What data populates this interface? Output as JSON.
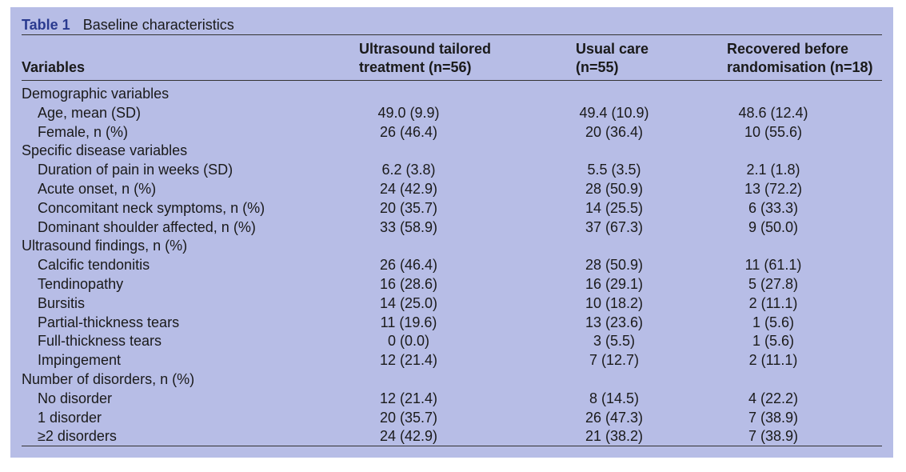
{
  "caption": {
    "label": "Table 1",
    "title": "Baseline characteristics"
  },
  "headers": {
    "variables": "Variables",
    "col1_line1": "Ultrasound tailored",
    "col1_line2": "treatment (n=56)",
    "col2_line1": "Usual care",
    "col2_line2": "(n=55)",
    "col3_line1": "Recovered before",
    "col3_line2": "randomisation (n=18)"
  },
  "rows": [
    {
      "type": "section",
      "label": "Demographic variables",
      "c1": "",
      "c2": "",
      "c3": ""
    },
    {
      "type": "item",
      "label": "Age, mean (SD)",
      "c1": "49.0 (9.9)",
      "c2": "49.4 (10.9)",
      "c3": "48.6 (12.4)"
    },
    {
      "type": "item",
      "label": "Female, n (%)",
      "c1": "26 (46.4)",
      "c2": "20 (36.4)",
      "c3": "10 (55.6)"
    },
    {
      "type": "section",
      "label": "Specific disease variables",
      "c1": "",
      "c2": "",
      "c3": ""
    },
    {
      "type": "item",
      "label": "Duration of pain in weeks (SD)",
      "c1": "6.2 (3.8)",
      "c2": "5.5 (3.5)",
      "c3": "2.1 (1.8)"
    },
    {
      "type": "item",
      "label": "Acute onset, n (%)",
      "c1": "24 (42.9)",
      "c2": "28 (50.9)",
      "c3": "13 (72.2)"
    },
    {
      "type": "item",
      "label": "Concomitant neck symptoms, n (%)",
      "c1": "20 (35.7)",
      "c2": "14 (25.5)",
      "c3": "6 (33.3)"
    },
    {
      "type": "item",
      "label": "Dominant shoulder affected, n (%)",
      "c1": "33 (58.9)",
      "c2": "37 (67.3)",
      "c3": "9 (50.0)"
    },
    {
      "type": "section",
      "label": "Ultrasound findings, n (%)",
      "c1": "",
      "c2": "",
      "c3": ""
    },
    {
      "type": "item",
      "label": "Calcific tendonitis",
      "c1": "26 (46.4)",
      "c2": "28 (50.9)",
      "c3": "11 (61.1)"
    },
    {
      "type": "item",
      "label": "Tendinopathy",
      "c1": "16 (28.6)",
      "c2": "16 (29.1)",
      "c3": "5 (27.8)"
    },
    {
      "type": "item",
      "label": "Bursitis",
      "c1": "14 (25.0)",
      "c2": "10 (18.2)",
      "c3": "2 (11.1)"
    },
    {
      "type": "item",
      "label": "Partial-thickness tears",
      "c1": "11 (19.6)",
      "c2": "13 (23.6)",
      "c3": "1 (5.6)"
    },
    {
      "type": "item",
      "label": "Full-thickness tears",
      "c1": "0 (0.0)",
      "c2": "3 (5.5)",
      "c3": "1 (5.6)"
    },
    {
      "type": "item",
      "label": "Impingement",
      "c1": "12 (21.4)",
      "c2": "7 (12.7)",
      "c3": "2 (11.1)"
    },
    {
      "type": "section",
      "label": "Number of disorders, n (%)",
      "c1": "",
      "c2": "",
      "c3": ""
    },
    {
      "type": "item",
      "label": "No disorder",
      "c1": "12 (21.4)",
      "c2": "8 (14.5)",
      "c3": "4 (22.2)"
    },
    {
      "type": "item",
      "label": "1 disorder",
      "c1": "20 (35.7)",
      "c2": "26 (47.3)",
      "c3": "7 (38.9)"
    },
    {
      "type": "item",
      "label": "≥2 disorders",
      "c1": "24 (42.9)",
      "c2": "21 (38.2)",
      "c3": "7 (38.9)"
    }
  ]
}
